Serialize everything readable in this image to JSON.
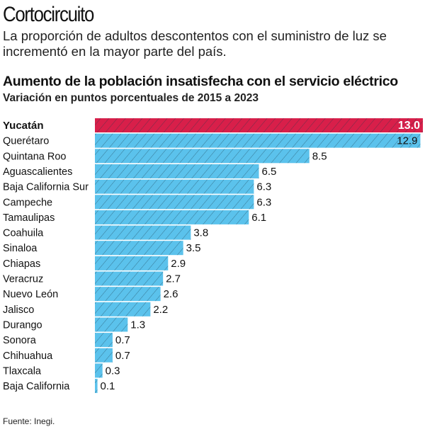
{
  "header": {
    "title": "Cortocircuito",
    "subtitle": "La proporción de adultos descontentos con el suministro de luz se incrementó en la mayor parte del país."
  },
  "source": "Fuente: Inegi.",
  "colors": {
    "highlight": "#d81f4a",
    "bar": "#5bc2ec",
    "hatch": "#1a3a4a"
  },
  "chart_data": {
    "type": "bar",
    "orientation": "horizontal",
    "title": "Aumento de la población insatisfecha con el servicio eléctrico",
    "subtitle": "Variación en puntos porcentuales de 2015 a 2023",
    "categories": [
      "Yucatán",
      "Querétaro",
      "Quintana Roo",
      "Aguascalientes",
      "Baja California Sur",
      "Campeche",
      "Tamaulipas",
      "Coahuila",
      "Sinaloa",
      "Chiapas",
      "Veracruz",
      "Nuevo León",
      "Jalisco",
      "Durango",
      "Sonora",
      "Chihuahua",
      "Tlaxcala",
      "Baja California"
    ],
    "values": [
      13.0,
      12.9,
      8.5,
      6.5,
      6.3,
      6.3,
      6.1,
      3.8,
      3.5,
      2.9,
      2.7,
      2.6,
      2.2,
      1.3,
      0.7,
      0.7,
      0.3,
      0.1
    ],
    "labels": [
      "13.0",
      "12.9",
      "8.5",
      "6.5",
      "6.3",
      "6.3",
      "6.1",
      "3.8",
      "3.5",
      "2.9",
      "2.7",
      "2.6",
      "2.2",
      "1.3",
      "0.7",
      "0.7",
      "0.3",
      "0.1"
    ],
    "highlight": "Yucatán",
    "xlim": [
      0,
      13
    ],
    "grid": false
  }
}
